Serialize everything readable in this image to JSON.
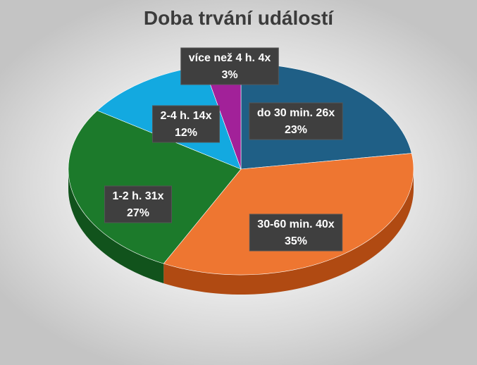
{
  "chart_data": {
    "type": "pie",
    "title": "Doba trvání událostí",
    "slices": [
      {
        "name": "do 30 min.",
        "count": 26,
        "count_label": "26x",
        "percent_label": "23%",
        "color": "#1f5f86",
        "side_color": "#12405c"
      },
      {
        "name": "30-60 min.",
        "count": 40,
        "count_label": "40x",
        "percent_label": "35%",
        "color": "#ee7631",
        "side_color": "#b04a12"
      },
      {
        "name": "1-2 h.",
        "count": 31,
        "count_label": "31x",
        "percent_label": "27%",
        "color": "#1c7a2b",
        "side_color": "#11531c"
      },
      {
        "name": "2-4 h.",
        "count": 14,
        "count_label": "14x",
        "percent_label": "12%",
        "color": "#13a9e0",
        "side_color": "#0b6f95"
      },
      {
        "name": "více než 4 h.",
        "count": 4,
        "count_label": "4x",
        "percent_label": "3%",
        "color": "#a22199",
        "side_color": "#6a1464"
      }
    ],
    "data_labels": [
      "category",
      "count",
      "percent"
    ],
    "legend": "none",
    "style": "3d-pie"
  }
}
